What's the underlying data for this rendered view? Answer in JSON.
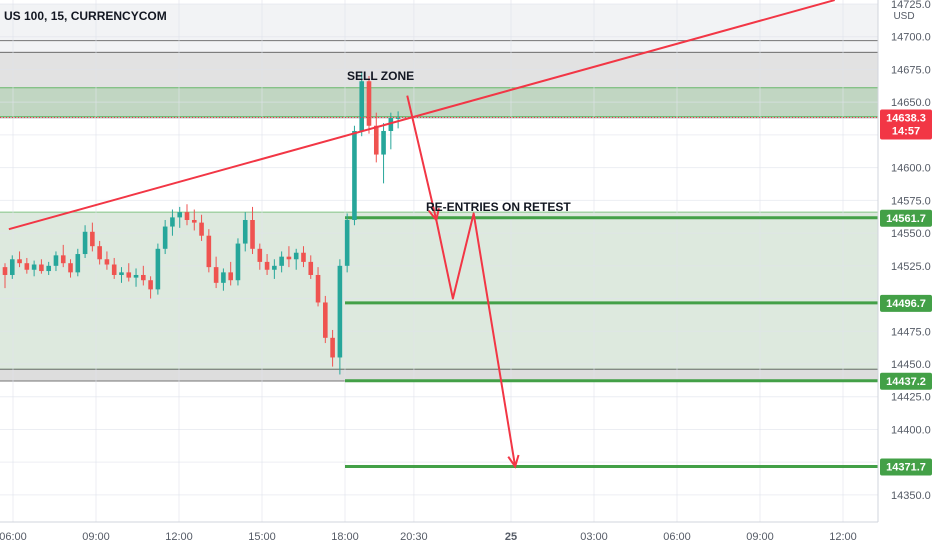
{
  "chart_data": {
    "type": "candlestick",
    "title": "US 100, 15, CURRENCYCOM",
    "currency": "USD",
    "y_axis": {
      "min": 14340,
      "max": 14725,
      "ticks": [
        14350.0,
        14375.0,
        14400.0,
        14425.0,
        14450.0,
        14475.0,
        14500.0,
        14525.0,
        14550.0,
        14575.0,
        14600.0,
        14625.0,
        14650.0,
        14675.0,
        14700.0,
        14725.0
      ],
      "tick_labels": [
        "14350.0",
        "14375.0",
        "14400.0",
        "14425.0",
        "14450.0",
        "14475.0",
        "14500.0",
        "14525.0",
        "14550.0",
        "14575.0",
        "14600.0",
        "14625.0",
        "14650.0",
        "14675.0",
        "14700.0",
        "14725.0"
      ]
    },
    "x_axis": {
      "labels": [
        {
          "label": "06:00",
          "pos": 0
        },
        {
          "label": "09:00",
          "pos": 1
        },
        {
          "label": "12:00",
          "pos": 2
        },
        {
          "label": "15:00",
          "pos": 3
        },
        {
          "label": "18:00",
          "pos": 4
        },
        {
          "label": "20:30",
          "pos": 4.83
        },
        {
          "label": "25",
          "pos": 6
        },
        {
          "label": "03:00",
          "pos": 7
        },
        {
          "label": "06:00",
          "pos": 8
        },
        {
          "label": "09:00",
          "pos": 9
        },
        {
          "label": "12:00",
          "pos": 10
        }
      ]
    },
    "colors": {
      "bull": "#26a69a",
      "bear": "#ef5350",
      "zone_green": "#4caf50",
      "trend": "#f23645",
      "level": "#43a047",
      "price_tag": "#f23645"
    },
    "candles": [
      [
        14524,
        14527,
        14508,
        14518
      ],
      [
        14518,
        14533,
        14515,
        14530
      ],
      [
        14530,
        14536,
        14524,
        14527
      ],
      [
        14527,
        14531,
        14519,
        14522
      ],
      [
        14522,
        14529,
        14517,
        14526
      ],
      [
        14526,
        14530,
        14519,
        14521
      ],
      [
        14521,
        14528,
        14518,
        14525
      ],
      [
        14525,
        14536,
        14521,
        14533
      ],
      [
        14533,
        14541,
        14524,
        14527
      ],
      [
        14527,
        14530,
        14516,
        14520
      ],
      [
        14520,
        14538,
        14517,
        14534
      ],
      [
        14534,
        14556,
        14531,
        14551
      ],
      [
        14551,
        14558,
        14536,
        14540
      ],
      [
        14540,
        14544,
        14526,
        14530
      ],
      [
        14530,
        14536,
        14522,
        14526
      ],
      [
        14526,
        14531,
        14515,
        14518
      ],
      [
        14518,
        14524,
        14512,
        14520
      ],
      [
        14520,
        14527,
        14513,
        14516
      ],
      [
        14516,
        14523,
        14509,
        14518
      ],
      [
        14518,
        14525,
        14510,
        14514
      ],
      [
        14514,
        14517,
        14500,
        14507
      ],
      [
        14507,
        14542,
        14503,
        14538
      ],
      [
        14538,
        14560,
        14534,
        14555
      ],
      [
        14555,
        14568,
        14548,
        14562
      ],
      [
        14562,
        14570,
        14554,
        14566
      ],
      [
        14566,
        14572,
        14556,
        14560
      ],
      [
        14560,
        14568,
        14552,
        14558
      ],
      [
        14558,
        14564,
        14544,
        14548
      ],
      [
        14548,
        14553,
        14520,
        14524
      ],
      [
        14524,
        14532,
        14508,
        14512
      ],
      [
        14512,
        14523,
        14506,
        14520
      ],
      [
        14520,
        14528,
        14510,
        14514
      ],
      [
        14514,
        14546,
        14510,
        14542
      ],
      [
        14542,
        14566,
        14536,
        14560
      ],
      [
        14560,
        14570,
        14534,
        14538
      ],
      [
        14538,
        14542,
        14522,
        14528
      ],
      [
        14528,
        14534,
        14518,
        14522
      ],
      [
        14522,
        14530,
        14515,
        14525
      ],
      [
        14525,
        14536,
        14520,
        14532
      ],
      [
        14532,
        14540,
        14524,
        14530
      ],
      [
        14530,
        14538,
        14522,
        14535
      ],
      [
        14535,
        14540,
        14524,
        14528
      ],
      [
        14528,
        14533,
        14515,
        14518
      ],
      [
        14518,
        14524,
        14494,
        14497
      ],
      [
        14497,
        14502,
        14466,
        14470
      ],
      [
        14470,
        14476,
        14448,
        14455
      ],
      [
        14455,
        14530,
        14442,
        14525
      ],
      [
        14525,
        14565,
        14520,
        14560
      ],
      [
        14560,
        14632,
        14556,
        14628
      ],
      [
        14628,
        14673,
        14624,
        14666
      ],
      [
        14666,
        14670,
        14626,
        14632
      ],
      [
        14632,
        14642,
        14604,
        14610
      ],
      [
        14610,
        14634,
        14588,
        14628
      ],
      [
        14628,
        14642,
        14614,
        14638
      ],
      [
        14638,
        14643,
        14630,
        14638
      ]
    ],
    "zones": [
      {
        "name": "upper-grey-band",
        "from": 14638,
        "to": 14688,
        "color": "#9e9e9e"
      },
      {
        "name": "sell-zone",
        "from": 14639,
        "to": 14661,
        "color": "#4caf50"
      },
      {
        "name": "range-zone",
        "from": 14446,
        "to": 14566,
        "color": "#66bb6a"
      }
    ],
    "levels": [
      {
        "value": 14561.7,
        "label": "14561.7",
        "color": "#43a047"
      },
      {
        "value": 14496.7,
        "label": "14496.7",
        "color": "#43a047"
      },
      {
        "value": 14437.2,
        "label": "14437.2",
        "color": "#43a047"
      },
      {
        "value": 14371.7,
        "label": "14371.7",
        "color": "#43a047"
      }
    ],
    "current_price": {
      "value": 14638.3,
      "label": "14638.3",
      "countdown": "14:57"
    },
    "annotations": [
      {
        "text": "SELL ZONE"
      },
      {
        "text": "RE-ENTRIES ON RETEST"
      }
    ],
    "trendline": {
      "from": {
        "pos": -0.05,
        "value": 14553
      },
      "to": {
        "pos": 9.9,
        "value": 14728
      }
    },
    "projection_path": [
      {
        "pos": 4.75,
        "value": 14655
      },
      {
        "pos": 5.1,
        "value": 14560
      },
      {
        "pos": 5.3,
        "value": 14500
      },
      {
        "pos": 5.55,
        "value": 14565
      },
      {
        "pos": 6.05,
        "value": 14371.7
      }
    ]
  }
}
